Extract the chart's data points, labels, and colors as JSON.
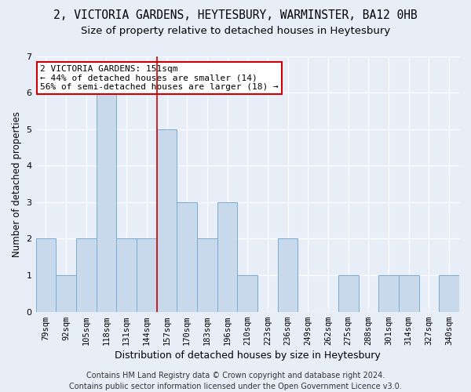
{
  "title": "2, VICTORIA GARDENS, HEYTESBURY, WARMINSTER, BA12 0HB",
  "subtitle": "Size of property relative to detached houses in Heytesbury",
  "xlabel": "Distribution of detached houses by size in Heytesbury",
  "ylabel": "Number of detached properties",
  "categories": [
    "79sqm",
    "92sqm",
    "105sqm",
    "118sqm",
    "131sqm",
    "144sqm",
    "157sqm",
    "170sqm",
    "183sqm",
    "196sqm",
    "210sqm",
    "223sqm",
    "236sqm",
    "249sqm",
    "262sqm",
    "275sqm",
    "288sqm",
    "301sqm",
    "314sqm",
    "327sqm",
    "340sqm"
  ],
  "values": [
    2,
    1,
    2,
    6,
    2,
    2,
    5,
    3,
    2,
    3,
    1,
    0,
    2,
    0,
    0,
    1,
    0,
    1,
    1,
    0,
    1
  ],
  "bar_color": "#c9d9ec",
  "bar_edge_color": "#7aabcf",
  "marker_line_color": "#cc0000",
  "annotation_text": "2 VICTORIA GARDENS: 151sqm\n← 44% of detached houses are smaller (14)\n56% of semi-detached houses are larger (18) →",
  "annotation_box_color": "#ffffff",
  "annotation_box_edge_color": "#cc0000",
  "ylim": [
    0,
    7
  ],
  "yticks": [
    0,
    1,
    2,
    3,
    4,
    5,
    6,
    7
  ],
  "background_color": "#e8eef8",
  "footer": "Contains HM Land Registry data © Crown copyright and database right 2024.\nContains public sector information licensed under the Open Government Licence v3.0.",
  "title_fontsize": 10.5,
  "subtitle_fontsize": 9.5,
  "annotation_fontsize": 8,
  "footer_fontsize": 7,
  "ylabel_fontsize": 8.5,
  "xlabel_fontsize": 9,
  "tick_fontsize": 7.5
}
